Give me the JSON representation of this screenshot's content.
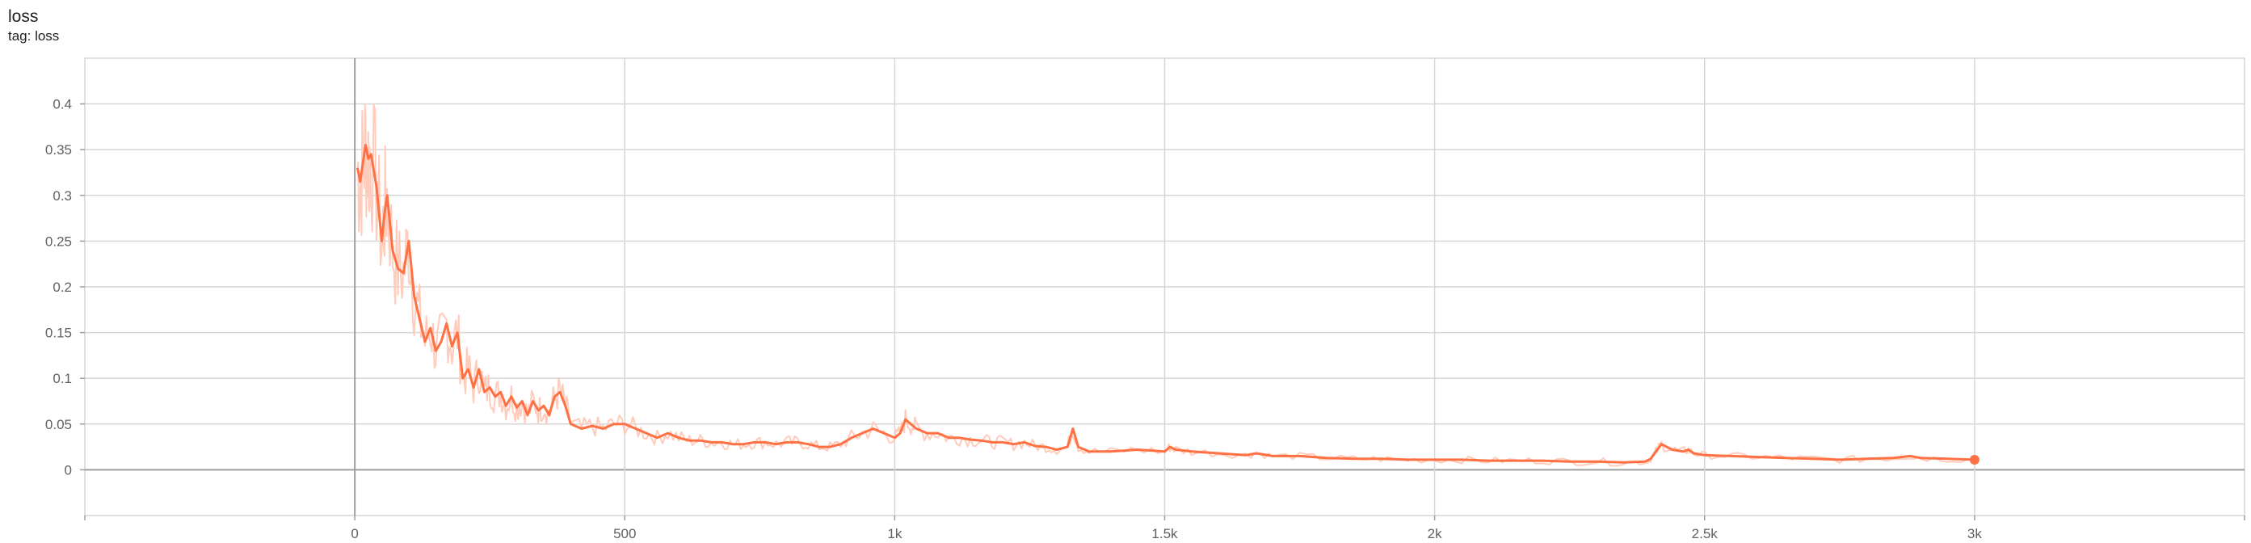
{
  "title": "loss",
  "subtitle": "tag: loss",
  "colors": {
    "series": "#ff7043",
    "raw": "#ffccbc",
    "grid": "#d6d6d6",
    "axis": "#9e9e9e",
    "tick_text": "#616161"
  },
  "chart_data": {
    "type": "line",
    "title": "loss",
    "xlabel": "",
    "ylabel": "",
    "xlim": [
      -500,
      3500
    ],
    "ylim": [
      -0.05,
      0.45
    ],
    "x_ticks": [
      0,
      500,
      1000,
      1500,
      2000,
      2500,
      3000
    ],
    "x_tick_labels": [
      "0",
      "500",
      "1k",
      "1.5k",
      "2k",
      "2.5k",
      "3k"
    ],
    "y_ticks": [
      0,
      0.05,
      0.1,
      0.15,
      0.2,
      0.25,
      0.3,
      0.35,
      0.4
    ],
    "y_tick_labels": [
      "0",
      "0.05",
      "0.1",
      "0.15",
      "0.2",
      "0.25",
      "0.3",
      "0.35",
      "0.4"
    ],
    "grid": true,
    "legend": "none",
    "series": [
      {
        "smoothed": {
          "x": [
            5,
            10,
            15,
            20,
            25,
            30,
            40,
            50,
            55,
            60,
            70,
            80,
            90,
            100,
            110,
            120,
            130,
            140,
            150,
            160,
            170,
            180,
            190,
            200,
            210,
            220,
            230,
            240,
            250,
            260,
            270,
            280,
            290,
            300,
            310,
            320,
            330,
            340,
            350,
            360,
            370,
            380,
            390,
            400,
            420,
            440,
            460,
            480,
            500,
            520,
            540,
            560,
            580,
            600,
            620,
            640,
            660,
            680,
            700,
            720,
            740,
            760,
            780,
            800,
            820,
            840,
            860,
            880,
            900,
            920,
            940,
            960,
            980,
            1000,
            1010,
            1020,
            1030,
            1040,
            1060,
            1080,
            1100,
            1120,
            1140,
            1160,
            1180,
            1200,
            1220,
            1240,
            1260,
            1280,
            1300,
            1320,
            1330,
            1340,
            1360,
            1400,
            1450,
            1500,
            1510,
            1520,
            1550,
            1600,
            1650,
            1670,
            1700,
            1750,
            1800,
            1850,
            1900,
            1950,
            2000,
            2050,
            2100,
            2150,
            2200,
            2250,
            2300,
            2350,
            2390,
            2400,
            2410,
            2420,
            2440,
            2460,
            2470,
            2480,
            2500,
            2550,
            2600,
            2650,
            2700,
            2750,
            2800,
            2850,
            2880,
            2900,
            2950,
            3000
          ],
          "y": [
            0.33,
            0.315,
            0.335,
            0.355,
            0.34,
            0.345,
            0.31,
            0.25,
            0.28,
            0.3,
            0.24,
            0.22,
            0.215,
            0.25,
            0.19,
            0.165,
            0.14,
            0.155,
            0.13,
            0.14,
            0.16,
            0.135,
            0.15,
            0.1,
            0.11,
            0.09,
            0.11,
            0.085,
            0.09,
            0.08,
            0.085,
            0.07,
            0.08,
            0.068,
            0.075,
            0.06,
            0.075,
            0.065,
            0.07,
            0.06,
            0.08,
            0.085,
            0.07,
            0.05,
            0.045,
            0.048,
            0.045,
            0.05,
            0.05,
            0.045,
            0.04,
            0.035,
            0.04,
            0.035,
            0.032,
            0.032,
            0.03,
            0.03,
            0.028,
            0.028,
            0.03,
            0.03,
            0.028,
            0.03,
            0.03,
            0.028,
            0.025,
            0.025,
            0.028,
            0.035,
            0.04,
            0.045,
            0.04,
            0.035,
            0.04,
            0.055,
            0.05,
            0.045,
            0.04,
            0.04,
            0.035,
            0.035,
            0.033,
            0.032,
            0.03,
            0.03,
            0.028,
            0.03,
            0.026,
            0.025,
            0.022,
            0.025,
            0.045,
            0.025,
            0.02,
            0.02,
            0.022,
            0.02,
            0.025,
            0.022,
            0.02,
            0.018,
            0.016,
            0.018,
            0.015,
            0.015,
            0.013,
            0.012,
            0.012,
            0.011,
            0.011,
            0.011,
            0.01,
            0.01,
            0.01,
            0.009,
            0.009,
            0.008,
            0.009,
            0.012,
            0.02,
            0.028,
            0.022,
            0.02,
            0.022,
            0.018,
            0.016,
            0.015,
            0.014,
            0.013,
            0.012,
            0.011,
            0.012,
            0.013,
            0.015,
            0.013,
            0.012,
            0.011
          ]
        }
      }
    ]
  }
}
